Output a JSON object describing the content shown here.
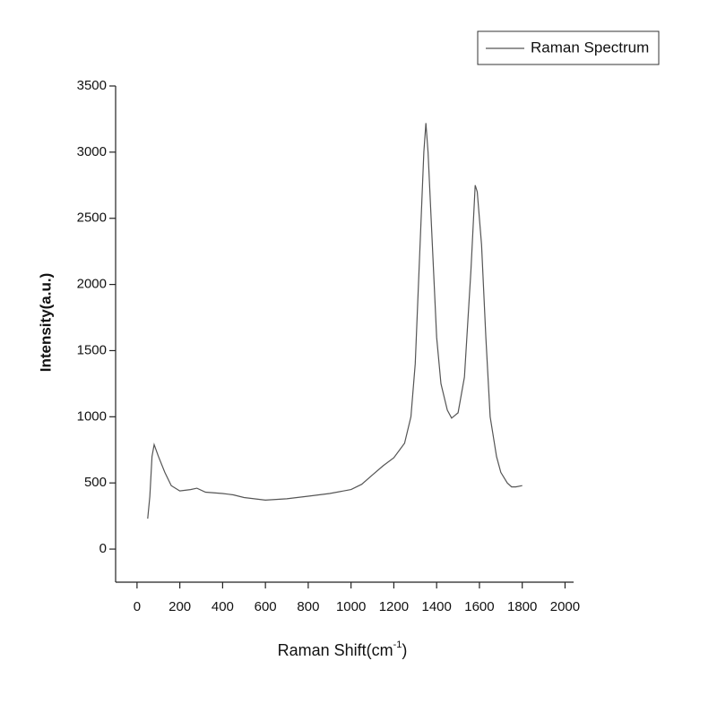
{
  "chart_data": {
    "type": "line",
    "x_label": [
      "Raman Shift(cm",
      "-1",
      ")"
    ],
    "y_label": "Intensity(a.u.)",
    "x": [
      50,
      60,
      70,
      80,
      100,
      130,
      160,
      200,
      250,
      280,
      320,
      400,
      450,
      500,
      600,
      700,
      800,
      900,
      1000,
      1050,
      1100,
      1150,
      1200,
      1250,
      1280,
      1300,
      1320,
      1340,
      1350,
      1360,
      1380,
      1400,
      1420,
      1450,
      1470,
      1500,
      1530,
      1560,
      1580,
      1590,
      1610,
      1630,
      1650,
      1680,
      1700,
      1730,
      1750,
      1770,
      1800
    ],
    "series": [
      {
        "name": "Raman Spectrum",
        "color": "#555555",
        "values": [
          230,
          400,
          700,
          790,
          700,
          580,
          480,
          440,
          450,
          460,
          430,
          420,
          410,
          390,
          370,
          380,
          400,
          420,
          450,
          490,
          560,
          630,
          690,
          800,
          1000,
          1400,
          2200,
          3000,
          3220,
          3000,
          2300,
          1600,
          1250,
          1050,
          990,
          1030,
          1300,
          2100,
          2750,
          2700,
          2300,
          1600,
          1000,
          700,
          580,
          500,
          470,
          470,
          480
        ]
      }
    ],
    "xlim": [
      -100,
      2040
    ],
    "ylim": [
      -250,
      3500
    ],
    "xticks": [
      0,
      200,
      400,
      600,
      800,
      1000,
      1200,
      1400,
      1600,
      1800,
      2000
    ],
    "yticks": [
      0,
      500,
      1000,
      1500,
      2000,
      2500,
      3000,
      3500
    ],
    "legend": "top-right"
  }
}
